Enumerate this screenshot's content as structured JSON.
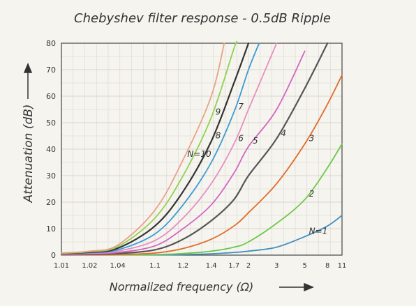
{
  "chart_data": {
    "type": "line",
    "title": "Chebyshev filter response - 0.5dB Ripple",
    "xlabel": "Normalized frequency (Ω)",
    "ylabel": "Attenuation (dB)",
    "x_scale": "log(Ω−1)",
    "x_ticks": [
      1.01,
      1.02,
      1.04,
      1.1,
      1.2,
      1.4,
      1.7,
      2,
      3,
      5,
      8,
      11
    ],
    "x_tick_labels": [
      "1.01",
      "1.02",
      "1.04",
      "1.1",
      "1.2",
      "1.4",
      "1.7",
      "2",
      "3",
      "5",
      "8",
      "11"
    ],
    "y_ticks": [
      0,
      10,
      20,
      30,
      40,
      50,
      60,
      70,
      80
    ],
    "y_tick_labels": [
      "0",
      "10",
      "20",
      "30",
      "40",
      "50",
      "60",
      "70",
      "80"
    ],
    "xlim": [
      1.01,
      11
    ],
    "ylim": [
      0,
      80
    ],
    "grid": true,
    "series": [
      {
        "name": "N=1",
        "color": "#3f8fc4",
        "points": [
          [
            1.01,
            0.1
          ],
          [
            1.02,
            0.1
          ],
          [
            1.04,
            0.1
          ],
          [
            1.1,
            0.1
          ],
          [
            1.2,
            0.2
          ],
          [
            1.4,
            0.5
          ],
          [
            1.7,
            1
          ],
          [
            2,
            1.5
          ],
          [
            3,
            3
          ],
          [
            5,
            7
          ],
          [
            8,
            11
          ],
          [
            11,
            15
          ]
        ]
      },
      {
        "name": "2",
        "color": "#6cc84a",
        "points": [
          [
            1.01,
            0.1
          ],
          [
            1.02,
            0.1
          ],
          [
            1.04,
            0.1
          ],
          [
            1.1,
            0.2
          ],
          [
            1.2,
            0.6
          ],
          [
            1.4,
            1.5
          ],
          [
            1.7,
            3
          ],
          [
            2,
            5
          ],
          [
            3,
            12
          ],
          [
            5,
            21
          ],
          [
            8,
            33
          ],
          [
            11,
            42
          ]
        ]
      },
      {
        "name": "3",
        "color": "#e06b2a",
        "points": [
          [
            1.01,
            0.1
          ],
          [
            1.02,
            0.1
          ],
          [
            1.04,
            0.2
          ],
          [
            1.1,
            0.8
          ],
          [
            1.2,
            2.5
          ],
          [
            1.4,
            6
          ],
          [
            1.7,
            11
          ],
          [
            2,
            16
          ],
          [
            3,
            27
          ],
          [
            5,
            42
          ],
          [
            8,
            57
          ],
          [
            11,
            68
          ]
        ]
      },
      {
        "name": "4",
        "color": "#555555",
        "points": [
          [
            1.01,
            0.2
          ],
          [
            1.02,
            0.3
          ],
          [
            1.04,
            0.6
          ],
          [
            1.1,
            2
          ],
          [
            1.2,
            6
          ],
          [
            1.4,
            13
          ],
          [
            1.7,
            21
          ],
          [
            2,
            30
          ],
          [
            3,
            44
          ],
          [
            5,
            63
          ],
          [
            8,
            80
          ]
        ]
      },
      {
        "name": "5",
        "color": "#d166c2",
        "points": [
          [
            1.01,
            0.3
          ],
          [
            1.02,
            0.5
          ],
          [
            1.04,
            1
          ],
          [
            1.1,
            3.5
          ],
          [
            1.2,
            10
          ],
          [
            1.4,
            19
          ],
          [
            1.7,
            31
          ],
          [
            2,
            41
          ],
          [
            3,
            55
          ],
          [
            5,
            77
          ]
        ]
      },
      {
        "name": "6",
        "color": "#e58fc2",
        "points": [
          [
            1.01,
            0.4
          ],
          [
            1.02,
            0.7
          ],
          [
            1.04,
            1.5
          ],
          [
            1.1,
            5.5
          ],
          [
            1.2,
            14
          ],
          [
            1.4,
            27
          ],
          [
            1.7,
            42
          ],
          [
            2,
            55
          ],
          [
            3,
            80
          ]
        ]
      },
      {
        "name": "7",
        "color": "#3a9ad6",
        "points": [
          [
            1.01,
            0.5
          ],
          [
            1.02,
            0.9
          ],
          [
            1.04,
            2
          ],
          [
            1.1,
            8
          ],
          [
            1.2,
            19
          ],
          [
            1.4,
            35
          ],
          [
            1.7,
            54
          ],
          [
            2,
            70
          ],
          [
            2.3,
            80
          ]
        ]
      },
      {
        "name": "8",
        "color": "#333333",
        "points": [
          [
            1.01,
            0.6
          ],
          [
            1.02,
            1.1
          ],
          [
            1.04,
            2.6
          ],
          [
            1.1,
            11
          ],
          [
            1.2,
            24
          ],
          [
            1.4,
            43
          ],
          [
            1.7,
            65
          ],
          [
            2,
            80
          ]
        ]
      },
      {
        "name": "9",
        "color": "#8fd14f",
        "points": [
          [
            1.01,
            0.7
          ],
          [
            1.02,
            1.3
          ],
          [
            1.04,
            3.2
          ],
          [
            1.1,
            14
          ],
          [
            1.2,
            30
          ],
          [
            1.4,
            52
          ],
          [
            1.7,
            78
          ],
          [
            1.75,
            80
          ]
        ]
      },
      {
        "name": "N=10",
        "color": "#e8a285",
        "points": [
          [
            1.01,
            0.8
          ],
          [
            1.02,
            1.5
          ],
          [
            1.04,
            3.8
          ],
          [
            1.1,
            17
          ],
          [
            1.2,
            36
          ],
          [
            1.4,
            60
          ],
          [
            1.55,
            80
          ]
        ]
      }
    ]
  }
}
